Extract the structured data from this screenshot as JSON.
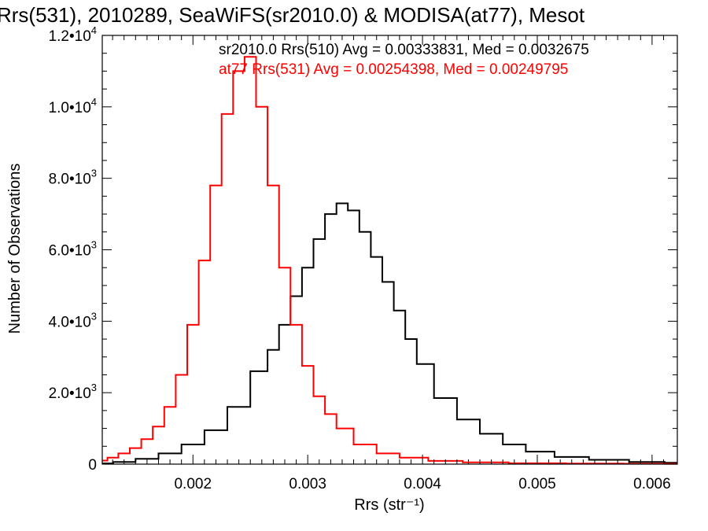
{
  "chart_data": {
    "type": "line",
    "title": "Rrs(531), 2010289, SeaWiFS(sr2010.0) & MODISA(at77), Mesot",
    "xlabel": "Rrs (str⁻¹)",
    "ylabel": "Number of Observations",
    "xlim": [
      0.00121,
      0.00622
    ],
    "ylim": [
      0,
      12000
    ],
    "x_ticks": [
      {
        "value": 0.002,
        "label": "0.002"
      },
      {
        "value": 0.003,
        "label": "0.003"
      },
      {
        "value": 0.004,
        "label": "0.004"
      },
      {
        "value": 0.005,
        "label": "0.005"
      },
      {
        "value": 0.006,
        "label": "0.006"
      }
    ],
    "y_ticks": [
      {
        "value": 0,
        "mantissa": "0",
        "exponent": ""
      },
      {
        "value": 2000,
        "mantissa": "2.0•10",
        "exponent": "3"
      },
      {
        "value": 4000,
        "mantissa": "4.0•10",
        "exponent": "3"
      },
      {
        "value": 6000,
        "mantissa": "6.0•10",
        "exponent": "3"
      },
      {
        "value": 8000,
        "mantissa": "8.0•10",
        "exponent": "3"
      },
      {
        "value": 10000,
        "mantissa": "1.0•10",
        "exponent": "4"
      },
      {
        "value": 12000,
        "mantissa": "1.2•10",
        "exponent": "4"
      }
    ],
    "legend_position": "top-right",
    "series": [
      {
        "name": "sr2010.0 Rrs(510) Avg = 0.00333831, Med = 0.0032675",
        "color": "#000000",
        "x": [
          0.00121,
          0.0014,
          0.0016,
          0.0018,
          0.002,
          0.0022,
          0.0024,
          0.0026,
          0.0027,
          0.0028,
          0.0029,
          0.003,
          0.0031,
          0.0032,
          0.0033,
          0.0034,
          0.0035,
          0.0036,
          0.0037,
          0.0038,
          0.0039,
          0.004,
          0.0042,
          0.0044,
          0.0046,
          0.0048,
          0.005,
          0.0053,
          0.0056,
          0.006,
          0.00622
        ],
        "y": [
          20,
          60,
          150,
          300,
          550,
          950,
          1600,
          2600,
          3200,
          3900,
          4700,
          5500,
          6300,
          7000,
          7300,
          7100,
          6500,
          5800,
          5100,
          4300,
          3500,
          2800,
          1850,
          1250,
          850,
          550,
          350,
          200,
          120,
          60,
          40
        ]
      },
      {
        "name": "at77 Rrs(531) Avg = 0.00254398, Med = 0.00249795",
        "color": "#ff0000",
        "x": [
          0.00121,
          0.0013,
          0.0014,
          0.0015,
          0.0016,
          0.0017,
          0.0018,
          0.0019,
          0.002,
          0.0021,
          0.0022,
          0.0023,
          0.0024,
          0.0025,
          0.0026,
          0.0027,
          0.0028,
          0.0029,
          0.003,
          0.0031,
          0.0032,
          0.0033,
          0.0035,
          0.0037,
          0.0039,
          0.0042,
          0.0045,
          0.005,
          0.0055,
          0.006,
          0.00622
        ],
        "y": [
          100,
          180,
          300,
          450,
          700,
          1050,
          1600,
          2500,
          3900,
          5700,
          7800,
          9800,
          11000,
          11400,
          10000,
          7800,
          5500,
          3900,
          2750,
          1900,
          1400,
          1000,
          550,
          300,
          180,
          90,
          50,
          25,
          15,
          10,
          8
        ]
      }
    ]
  }
}
